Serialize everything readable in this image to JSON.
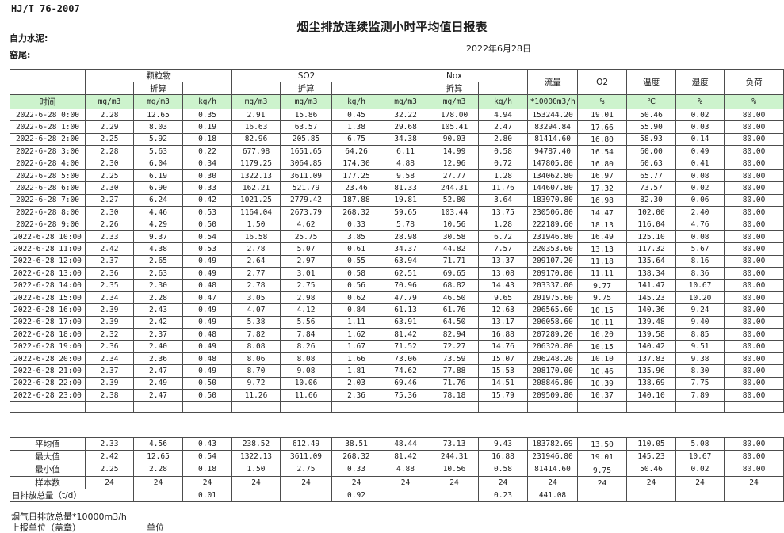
{
  "page": {
    "standard_code": "HJ/T  76-2007",
    "title": "烟尘排放连续监测小时平均值日报表",
    "company": "自力水泥:",
    "site": "窑尾:",
    "date": "2022年6月28日"
  },
  "colors": {
    "header_green": "#cdf3cd",
    "border": "#4d4d4d"
  },
  "table": {
    "time_header": "时间",
    "groups": [
      {
        "label": "颗粒物",
        "sub": "折算"
      },
      {
        "label": "SO2",
        "sub": "折算"
      },
      {
        "label": "Nox",
        "sub": "折算"
      }
    ],
    "single_headers": [
      "流量",
      "O2",
      "温度",
      "湿度",
      "负荷"
    ],
    "units": [
      "mg/m3",
      "mg/m3",
      "kg/h",
      "mg/m3",
      "mg/m3",
      "kg/h",
      "mg/m3",
      "mg/m3",
      "kg/h",
      "*10000m3/h",
      "%",
      "℃",
      "%",
      "%"
    ],
    "rows": [
      {
        "time": "2022-6-28 0:00",
        "values": [
          "2.28",
          "12.65",
          "0.35",
          "2.91",
          "15.86",
          "0.45",
          "32.22",
          "178.00",
          "4.94",
          "153244.20",
          "19.01",
          "50.46",
          "0.02",
          "80.00"
        ]
      },
      {
        "time": "2022-6-28 1:00",
        "values": [
          "2.29",
          "8.03",
          "0.19",
          "16.63",
          "63.57",
          "1.38",
          "29.68",
          "105.41",
          "2.47",
          "83294.84",
          "17.66",
          "55.90",
          "0.03",
          "80.00"
        ]
      },
      {
        "time": "2022-6-28 2:00",
        "values": [
          "2.25",
          "5.92",
          "0.18",
          "82.96",
          "205.85",
          "6.75",
          "34.38",
          "90.03",
          "2.80",
          "81414.60",
          "16.80",
          "58.93",
          "0.14",
          "80.00"
        ]
      },
      {
        "time": "2022-6-28 3:00",
        "values": [
          "2.28",
          "5.63",
          "0.22",
          "677.98",
          "1651.65",
          "64.26",
          "6.11",
          "14.99",
          "0.58",
          "94787.40",
          "16.54",
          "60.00",
          "0.49",
          "80.00"
        ]
      },
      {
        "time": "2022-6-28 4:00",
        "values": [
          "2.30",
          "6.04",
          "0.34",
          "1179.25",
          "3064.85",
          "174.30",
          "4.88",
          "12.96",
          "0.72",
          "147805.80",
          "16.80",
          "60.63",
          "0.41",
          "80.00"
        ]
      },
      {
        "time": "2022-6-28 5:00",
        "values": [
          "2.25",
          "6.19",
          "0.30",
          "1322.13",
          "3611.09",
          "177.25",
          "9.58",
          "27.77",
          "1.28",
          "134062.80",
          "16.97",
          "65.77",
          "0.08",
          "80.00"
        ]
      },
      {
        "time": "2022-6-28 6:00",
        "values": [
          "2.30",
          "6.90",
          "0.33",
          "162.21",
          "521.79",
          "23.46",
          "81.33",
          "244.31",
          "11.76",
          "144607.80",
          "17.32",
          "73.57",
          "0.02",
          "80.00"
        ]
      },
      {
        "time": "2022-6-28 7:00",
        "values": [
          "2.27",
          "6.24",
          "0.42",
          "1021.25",
          "2779.42",
          "187.88",
          "19.81",
          "52.80",
          "3.64",
          "183970.80",
          "16.98",
          "82.30",
          "0.06",
          "80.00"
        ]
      },
      {
        "time": "2022-6-28 8:00",
        "values": [
          "2.30",
          "4.46",
          "0.53",
          "1164.04",
          "2673.79",
          "268.32",
          "59.65",
          "103.44",
          "13.75",
          "230506.80",
          "14.47",
          "102.00",
          "2.40",
          "80.00"
        ]
      },
      {
        "time": "2022-6-28 9:00",
        "values": [
          "2.26",
          "4.29",
          "0.50",
          "1.50",
          "4.62",
          "0.33",
          "5.78",
          "10.56",
          "1.28",
          "222189.60",
          "18.13",
          "116.04",
          "4.76",
          "80.00"
        ]
      },
      {
        "time": "2022-6-28 10:00",
        "values": [
          "2.33",
          "9.37",
          "0.54",
          "16.58",
          "25.75",
          "3.85",
          "28.98",
          "30.58",
          "6.72",
          "231946.80",
          "16.49",
          "125.10",
          "0.08",
          "80.00"
        ]
      },
      {
        "time": "2022-6-28 11:00",
        "values": [
          "2.42",
          "4.38",
          "0.53",
          "2.78",
          "5.07",
          "0.61",
          "34.37",
          "44.82",
          "7.57",
          "220353.60",
          "13.13",
          "117.32",
          "5.67",
          "80.00"
        ]
      },
      {
        "time": "2022-6-28 12:00",
        "values": [
          "2.37",
          "2.65",
          "0.49",
          "2.64",
          "2.97",
          "0.55",
          "63.94",
          "71.71",
          "13.37",
          "209107.20",
          "11.18",
          "135.64",
          "8.16",
          "80.00"
        ]
      },
      {
        "time": "2022-6-28 13:00",
        "values": [
          "2.36",
          "2.63",
          "0.49",
          "2.77",
          "3.01",
          "0.58",
          "62.51",
          "69.65",
          "13.08",
          "209170.80",
          "11.11",
          "138.34",
          "8.36",
          "80.00"
        ]
      },
      {
        "time": "2022-6-28 14:00",
        "values": [
          "2.35",
          "2.30",
          "0.48",
          "2.78",
          "2.75",
          "0.56",
          "70.96",
          "68.82",
          "14.43",
          "203337.00",
          "9.77",
          "141.47",
          "10.67",
          "80.00"
        ]
      },
      {
        "time": "2022-6-28 15:00",
        "values": [
          "2.34",
          "2.28",
          "0.47",
          "3.05",
          "2.98",
          "0.62",
          "47.79",
          "46.50",
          "9.65",
          "201975.60",
          "9.75",
          "145.23",
          "10.20",
          "80.00"
        ]
      },
      {
        "time": "2022-6-28 16:00",
        "values": [
          "2.39",
          "2.43",
          "0.49",
          "4.07",
          "4.12",
          "0.84",
          "61.13",
          "61.76",
          "12.63",
          "206565.60",
          "10.15",
          "140.36",
          "9.24",
          "80.00"
        ]
      },
      {
        "time": "2022-6-28 17:00",
        "values": [
          "2.39",
          "2.42",
          "0.49",
          "5.38",
          "5.56",
          "1.11",
          "63.91",
          "64.50",
          "13.17",
          "206058.60",
          "10.11",
          "139.48",
          "9.40",
          "80.00"
        ]
      },
      {
        "time": "2022-6-28 18:00",
        "values": [
          "2.32",
          "2.37",
          "0.48",
          "7.82",
          "7.84",
          "1.62",
          "81.42",
          "82.94",
          "16.88",
          "207289.20",
          "10.20",
          "139.58",
          "8.85",
          "80.00"
        ]
      },
      {
        "time": "2022-6-28 19:00",
        "values": [
          "2.36",
          "2.40",
          "0.49",
          "8.08",
          "8.26",
          "1.67",
          "71.52",
          "72.27",
          "14.76",
          "206320.80",
          "10.15",
          "140.42",
          "9.51",
          "80.00"
        ]
      },
      {
        "time": "2022-6-28 20:00",
        "values": [
          "2.34",
          "2.36",
          "0.48",
          "8.06",
          "8.08",
          "1.66",
          "73.06",
          "73.59",
          "15.07",
          "206248.20",
          "10.10",
          "137.83",
          "9.38",
          "80.00"
        ]
      },
      {
        "time": "2022-6-28 21:00",
        "values": [
          "2.37",
          "2.47",
          "0.49",
          "8.70",
          "9.08",
          "1.81",
          "74.62",
          "77.88",
          "15.53",
          "208170.00",
          "10.46",
          "135.96",
          "8.30",
          "80.00"
        ]
      },
      {
        "time": "2022-6-28 22:00",
        "values": [
          "2.39",
          "2.49",
          "0.50",
          "9.72",
          "10.06",
          "2.03",
          "69.46",
          "71.76",
          "14.51",
          "208846.80",
          "10.39",
          "138.69",
          "7.75",
          "80.00"
        ]
      },
      {
        "time": "2022-6-28 23:00",
        "values": [
          "2.38",
          "2.47",
          "0.50",
          "11.26",
          "11.66",
          "2.36",
          "75.36",
          "78.18",
          "15.79",
          "209509.80",
          "10.37",
          "140.10",
          "7.89",
          "80.00"
        ]
      }
    ],
    "summary_rows": [
      {
        "label": "平均值",
        "values": [
          "2.33",
          "4.56",
          "0.43",
          "238.52",
          "612.49",
          "38.51",
          "48.44",
          "73.13",
          "9.43",
          "183782.69",
          "13.50",
          "110.05",
          "5.08",
          "80.00"
        ]
      },
      {
        "label": "最大值",
        "values": [
          "2.42",
          "12.65",
          "0.54",
          "1322.13",
          "3611.09",
          "268.32",
          "81.42",
          "244.31",
          "16.88",
          "231946.80",
          "19.01",
          "145.23",
          "10.67",
          "80.00"
        ]
      },
      {
        "label": "最小值",
        "values": [
          "2.25",
          "2.28",
          "0.18",
          "1.50",
          "2.75",
          "0.33",
          "4.88",
          "10.56",
          "0.58",
          "81414.60",
          "9.75",
          "50.46",
          "0.02",
          "80.00"
        ]
      },
      {
        "label": "样本数",
        "values": [
          "24",
          "24",
          "24",
          "24",
          "24",
          "24",
          "24",
          "24",
          "24",
          "24",
          "24",
          "24",
          "24",
          "24"
        ]
      }
    ],
    "total_row": {
      "label": "日排放总量（t/d）",
      "values": [
        "",
        "0.01",
        "",
        "",
        "0.92",
        "",
        "",
        "0.23",
        "441.08",
        "",
        "",
        "",
        ""
      ]
    }
  },
  "footer": {
    "flow_note": "烟气日排放总量*10000m3/h",
    "report_unit": "上报单位（盖章）",
    "unit": "单位"
  }
}
